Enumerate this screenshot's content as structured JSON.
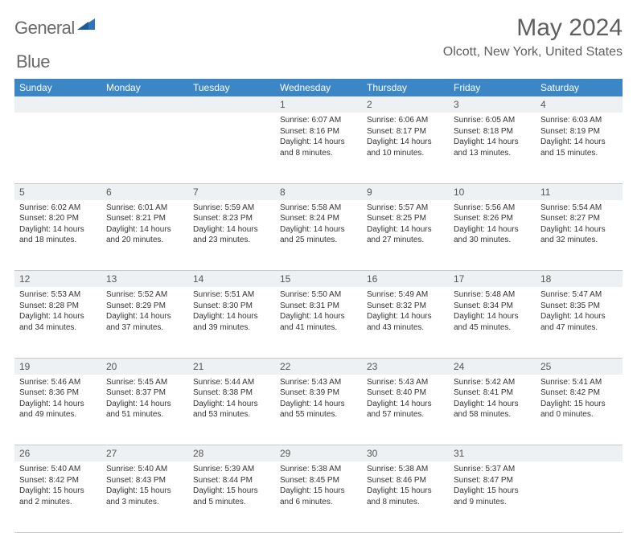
{
  "brand": {
    "name_a": "General",
    "name_b": "Blue"
  },
  "header": {
    "month_year": "May 2024",
    "location": "Olcott, New York, United States"
  },
  "colors": {
    "header_bg": "#3d86c6",
    "header_text": "#ffffff",
    "daynum_bg": "#eef1f3",
    "rule": "#c9c9c9",
    "logo_blue": "#2f75b5",
    "title_gray": "#5f5f5f"
  },
  "weekdays": [
    "Sunday",
    "Monday",
    "Tuesday",
    "Wednesday",
    "Thursday",
    "Friday",
    "Saturday"
  ],
  "weeks": [
    {
      "nums": [
        "",
        "",
        "",
        "1",
        "2",
        "3",
        "4"
      ],
      "cells": [
        null,
        null,
        null,
        {
          "sunrise": "Sunrise: 6:07 AM",
          "sunset": "Sunset: 8:16 PM",
          "daylight": "Daylight: 14 hours and 8 minutes."
        },
        {
          "sunrise": "Sunrise: 6:06 AM",
          "sunset": "Sunset: 8:17 PM",
          "daylight": "Daylight: 14 hours and 10 minutes."
        },
        {
          "sunrise": "Sunrise: 6:05 AM",
          "sunset": "Sunset: 8:18 PM",
          "daylight": "Daylight: 14 hours and 13 minutes."
        },
        {
          "sunrise": "Sunrise: 6:03 AM",
          "sunset": "Sunset: 8:19 PM",
          "daylight": "Daylight: 14 hours and 15 minutes."
        }
      ]
    },
    {
      "nums": [
        "5",
        "6",
        "7",
        "8",
        "9",
        "10",
        "11"
      ],
      "cells": [
        {
          "sunrise": "Sunrise: 6:02 AM",
          "sunset": "Sunset: 8:20 PM",
          "daylight": "Daylight: 14 hours and 18 minutes."
        },
        {
          "sunrise": "Sunrise: 6:01 AM",
          "sunset": "Sunset: 8:21 PM",
          "daylight": "Daylight: 14 hours and 20 minutes."
        },
        {
          "sunrise": "Sunrise: 5:59 AM",
          "sunset": "Sunset: 8:23 PM",
          "daylight": "Daylight: 14 hours and 23 minutes."
        },
        {
          "sunrise": "Sunrise: 5:58 AM",
          "sunset": "Sunset: 8:24 PM",
          "daylight": "Daylight: 14 hours and 25 minutes."
        },
        {
          "sunrise": "Sunrise: 5:57 AM",
          "sunset": "Sunset: 8:25 PM",
          "daylight": "Daylight: 14 hours and 27 minutes."
        },
        {
          "sunrise": "Sunrise: 5:56 AM",
          "sunset": "Sunset: 8:26 PM",
          "daylight": "Daylight: 14 hours and 30 minutes."
        },
        {
          "sunrise": "Sunrise: 5:54 AM",
          "sunset": "Sunset: 8:27 PM",
          "daylight": "Daylight: 14 hours and 32 minutes."
        }
      ]
    },
    {
      "nums": [
        "12",
        "13",
        "14",
        "15",
        "16",
        "17",
        "18"
      ],
      "cells": [
        {
          "sunrise": "Sunrise: 5:53 AM",
          "sunset": "Sunset: 8:28 PM",
          "daylight": "Daylight: 14 hours and 34 minutes."
        },
        {
          "sunrise": "Sunrise: 5:52 AM",
          "sunset": "Sunset: 8:29 PM",
          "daylight": "Daylight: 14 hours and 37 minutes."
        },
        {
          "sunrise": "Sunrise: 5:51 AM",
          "sunset": "Sunset: 8:30 PM",
          "daylight": "Daylight: 14 hours and 39 minutes."
        },
        {
          "sunrise": "Sunrise: 5:50 AM",
          "sunset": "Sunset: 8:31 PM",
          "daylight": "Daylight: 14 hours and 41 minutes."
        },
        {
          "sunrise": "Sunrise: 5:49 AM",
          "sunset": "Sunset: 8:32 PM",
          "daylight": "Daylight: 14 hours and 43 minutes."
        },
        {
          "sunrise": "Sunrise: 5:48 AM",
          "sunset": "Sunset: 8:34 PM",
          "daylight": "Daylight: 14 hours and 45 minutes."
        },
        {
          "sunrise": "Sunrise: 5:47 AM",
          "sunset": "Sunset: 8:35 PM",
          "daylight": "Daylight: 14 hours and 47 minutes."
        }
      ]
    },
    {
      "nums": [
        "19",
        "20",
        "21",
        "22",
        "23",
        "24",
        "25"
      ],
      "cells": [
        {
          "sunrise": "Sunrise: 5:46 AM",
          "sunset": "Sunset: 8:36 PM",
          "daylight": "Daylight: 14 hours and 49 minutes."
        },
        {
          "sunrise": "Sunrise: 5:45 AM",
          "sunset": "Sunset: 8:37 PM",
          "daylight": "Daylight: 14 hours and 51 minutes."
        },
        {
          "sunrise": "Sunrise: 5:44 AM",
          "sunset": "Sunset: 8:38 PM",
          "daylight": "Daylight: 14 hours and 53 minutes."
        },
        {
          "sunrise": "Sunrise: 5:43 AM",
          "sunset": "Sunset: 8:39 PM",
          "daylight": "Daylight: 14 hours and 55 minutes."
        },
        {
          "sunrise": "Sunrise: 5:43 AM",
          "sunset": "Sunset: 8:40 PM",
          "daylight": "Daylight: 14 hours and 57 minutes."
        },
        {
          "sunrise": "Sunrise: 5:42 AM",
          "sunset": "Sunset: 8:41 PM",
          "daylight": "Daylight: 14 hours and 58 minutes."
        },
        {
          "sunrise": "Sunrise: 5:41 AM",
          "sunset": "Sunset: 8:42 PM",
          "daylight": "Daylight: 15 hours and 0 minutes."
        }
      ]
    },
    {
      "nums": [
        "26",
        "27",
        "28",
        "29",
        "30",
        "31",
        ""
      ],
      "cells": [
        {
          "sunrise": "Sunrise: 5:40 AM",
          "sunset": "Sunset: 8:42 PM",
          "daylight": "Daylight: 15 hours and 2 minutes."
        },
        {
          "sunrise": "Sunrise: 5:40 AM",
          "sunset": "Sunset: 8:43 PM",
          "daylight": "Daylight: 15 hours and 3 minutes."
        },
        {
          "sunrise": "Sunrise: 5:39 AM",
          "sunset": "Sunset: 8:44 PM",
          "daylight": "Daylight: 15 hours and 5 minutes."
        },
        {
          "sunrise": "Sunrise: 5:38 AM",
          "sunset": "Sunset: 8:45 PM",
          "daylight": "Daylight: 15 hours and 6 minutes."
        },
        {
          "sunrise": "Sunrise: 5:38 AM",
          "sunset": "Sunset: 8:46 PM",
          "daylight": "Daylight: 15 hours and 8 minutes."
        },
        {
          "sunrise": "Sunrise: 5:37 AM",
          "sunset": "Sunset: 8:47 PM",
          "daylight": "Daylight: 15 hours and 9 minutes."
        },
        null
      ]
    }
  ]
}
